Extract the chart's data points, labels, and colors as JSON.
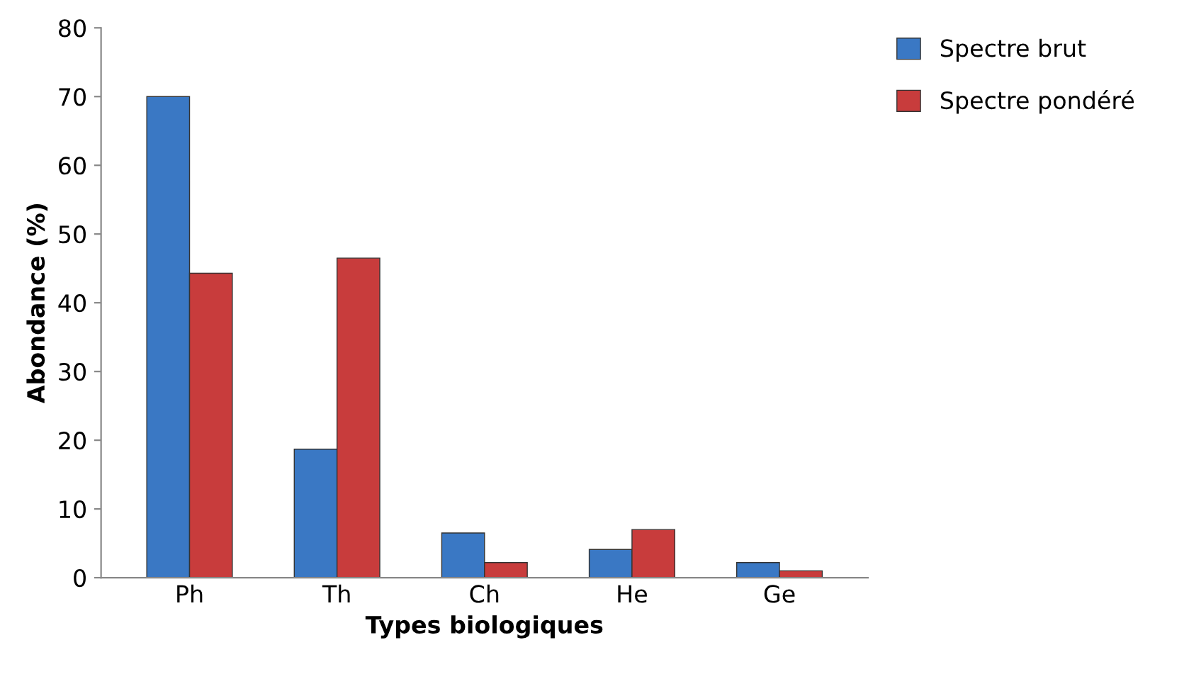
{
  "chart_data": {
    "type": "bar",
    "xlabel": "Types biologiques",
    "ylabel": "Abondance (%)",
    "categories": [
      "Ph",
      "Th",
      "Ch",
      "He",
      "Ge"
    ],
    "series": [
      {
        "name": "Spectre brut",
        "color": "#3a78c4",
        "values": [
          70,
          18.7,
          6.5,
          4.1,
          2.2
        ]
      },
      {
        "name": "Spectre pondéré",
        "color": "#c83c3c",
        "values": [
          44.3,
          46.5,
          2.2,
          7.0,
          1.0
        ]
      }
    ],
    "ylim": [
      0,
      80
    ],
    "yticks": [
      0,
      10,
      20,
      30,
      40,
      50,
      60,
      70,
      80
    ],
    "grid": false,
    "legend": "top right"
  }
}
